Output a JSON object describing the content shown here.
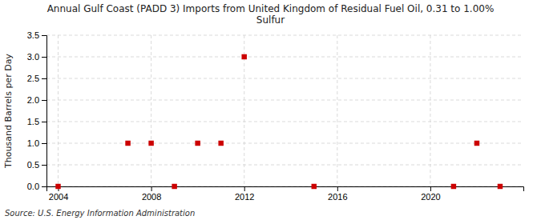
{
  "chart_data": {
    "type": "scatter",
    "title": "Annual Gulf Coast (PADD 3) Imports from United Kingdom of Residual Fuel Oil, 0.31 to 1.00%\nSulfur",
    "y_label": "Thousand Barrels per Day",
    "source": "Source: U.S. Energy Information Administration",
    "x": [
      2004,
      2007,
      2008,
      2009,
      2010,
      2011,
      2012,
      2015,
      2021,
      2022,
      2023
    ],
    "values": [
      0.0,
      1.0,
      1.0,
      0.0,
      1.0,
      1.0,
      3.0,
      0.0,
      0.0,
      1.0,
      0.0
    ],
    "color": "#cc0000",
    "marker": "square",
    "xlim": [
      2003.5,
      2024
    ],
    "ylim": [
      0,
      3.5
    ],
    "xticks": [
      2004,
      2008,
      2012,
      2016,
      2020
    ],
    "yticks": [
      {
        "value": 0.0,
        "label": "0.0"
      },
      0.5,
      {
        "value": 1.0,
        "label": "1.0"
      },
      1.5,
      {
        "value": 2.0,
        "label": "2.0"
      },
      2.5,
      {
        "value": 3.0,
        "label": "3.0"
      },
      3.5
    ],
    "grid": true
  }
}
